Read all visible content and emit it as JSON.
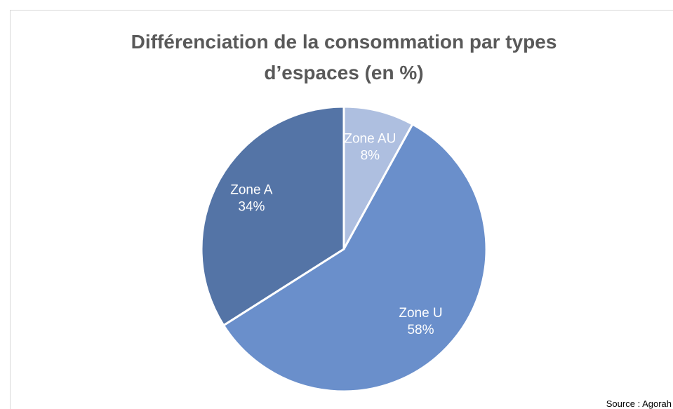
{
  "chart_data": {
    "type": "pie",
    "title": "Différenciation de la consommation par types d’espaces (en %)",
    "categories": [
      "Zone AU",
      "Zone U",
      "Zone A"
    ],
    "values": [
      8,
      58,
      34
    ],
    "value_labels": [
      "8%",
      "58%",
      "34%"
    ],
    "colors": [
      "#aebfe0",
      "#6a8fcb",
      "#5474a6"
    ],
    "source": "Source : Agorah"
  }
}
